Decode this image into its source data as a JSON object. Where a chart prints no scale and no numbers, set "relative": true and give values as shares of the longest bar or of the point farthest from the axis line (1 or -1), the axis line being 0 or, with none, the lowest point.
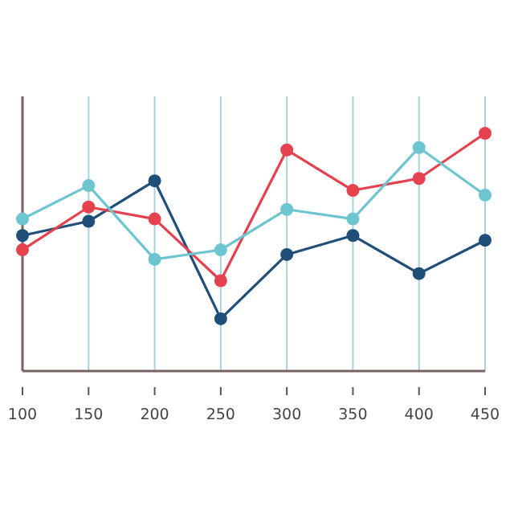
{
  "chart_data": {
    "type": "line",
    "relative": true,
    "x": [
      100,
      150,
      200,
      250,
      300,
      350,
      400,
      450
    ],
    "xlim": [
      100,
      450
    ],
    "xticks": [
      100,
      150,
      200,
      250,
      300,
      350,
      400,
      450
    ],
    "grid": "x",
    "marker": "circle",
    "series": [
      {
        "color": "#1f4e79",
        "values": [
          0.57,
          0.63,
          0.8,
          0.22,
          0.49,
          0.57,
          0.41,
          0.55
        ]
      },
      {
        "color": "#e5414f",
        "values": [
          0.51,
          0.69,
          0.64,
          0.38,
          0.93,
          0.76,
          0.81,
          1
        ]
      },
      {
        "color": "#6cc5cf",
        "values": [
          0.64,
          0.78,
          0.47,
          0.51,
          0.68,
          0.64,
          0.94,
          0.74
        ]
      }
    ]
  }
}
